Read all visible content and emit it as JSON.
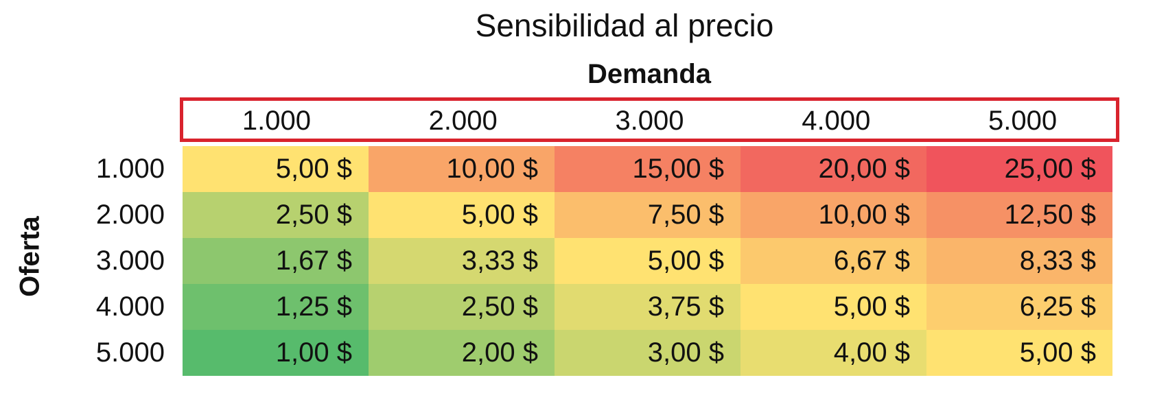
{
  "chart_data": {
    "type": "heatmap",
    "title": "Sensibilidad al precio",
    "xlabel": "Demanda",
    "ylabel": "Oferta",
    "x": [
      "1.000",
      "2.000",
      "3.000",
      "4.000",
      "5.000"
    ],
    "y": [
      "1.000",
      "2.000",
      "3.000",
      "4.000",
      "5.000"
    ],
    "values": [
      [
        5.0,
        10.0,
        15.0,
        20.0,
        25.0
      ],
      [
        2.5,
        5.0,
        7.5,
        10.0,
        12.5
      ],
      [
        1.67,
        3.33,
        5.0,
        6.67,
        8.33
      ],
      [
        1.25,
        2.5,
        3.75,
        5.0,
        6.25
      ],
      [
        1.0,
        2.0,
        3.0,
        4.0,
        5.0
      ]
    ],
    "cell_labels": [
      [
        "5,00 $",
        "10,00 $",
        "15,00 $",
        "20,00 $",
        "25,00 $"
      ],
      [
        "2,50 $",
        "5,00 $",
        "7,50 $",
        "10,00 $",
        "12,50 $"
      ],
      [
        "1,67 $",
        "3,33 $",
        "5,00 $",
        "6,67 $",
        "8,33 $"
      ],
      [
        "1,25 $",
        "2,50 $",
        "3,75 $",
        "5,00 $",
        "6,25 $"
      ],
      [
        "1,00 $",
        "2,00 $",
        "3,00 $",
        "4,00 $",
        "5,00 $"
      ]
    ],
    "colormap": {
      "low": "#57bb6c",
      "mid": "#ffe271",
      "high": "#f0545c"
    },
    "header_highlight_color": "#d9232d"
  }
}
